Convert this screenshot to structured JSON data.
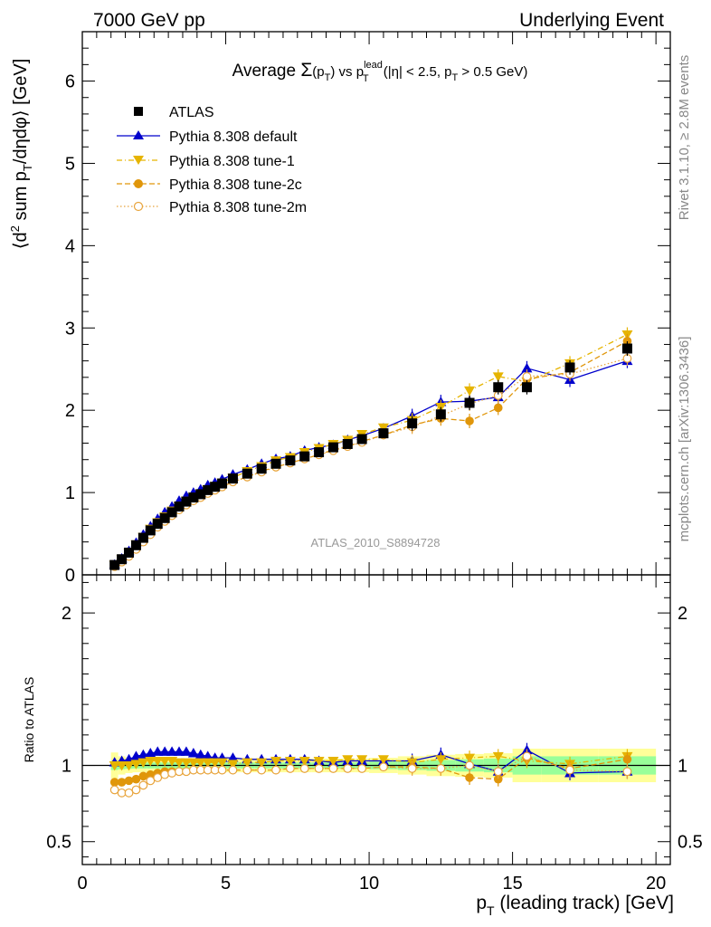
{
  "header": {
    "left": "7000 GeV pp",
    "right": "Underlying Event"
  },
  "side_labels": {
    "rivet": "Rivet 3.1.10, ≥ 2.8M events",
    "mcplots": "mcplots.cern.ch [arXiv:1306.3436]"
  },
  "watermark": "ATLAS_2010_S8894728",
  "colors": {
    "atlas": "#000000",
    "default": "#0000cc",
    "tune1": "#e6b400",
    "tune2c": "#e0960a",
    "tune2m": "#e8a43c",
    "band_inner": "#99ff99",
    "band_outer": "#ffff99"
  },
  "chart_data": [
    {
      "type": "scatter",
      "title": {
        "prefix": "Average ",
        "sigma": "Σ",
        "arg": "(p",
        "arg_sub": "T",
        "arg_close": ")",
        "vs": " vs p",
        "vs_sup": "lead",
        "vs_sub": "T",
        "cuts_1": " (|η| < 2.5, p",
        "cuts_sub": "T",
        "cuts_2": " > 0.5 GeV)"
      },
      "ylabel": {
        "a": "⟨d",
        "sup": "2",
        "b": " sum p",
        "sub": "T",
        "c": "/dηdφ⟩ [GeV]"
      },
      "xlim": [
        0,
        20.5
      ],
      "ylim": [
        0,
        6.6
      ],
      "yticks": [
        0,
        1,
        2,
        3,
        4,
        5,
        6
      ],
      "x": [
        1.125,
        1.375,
        1.625,
        1.875,
        2.125,
        2.375,
        2.625,
        2.875,
        3.125,
        3.375,
        3.625,
        3.875,
        4.125,
        4.375,
        4.625,
        4.875,
        5.25,
        5.75,
        6.25,
        6.75,
        7.25,
        7.75,
        8.25,
        8.75,
        9.25,
        9.75,
        10.5,
        11.5,
        12.5,
        13.5,
        14.5,
        15.5,
        17.0,
        19.0
      ],
      "series": [
        {
          "name": "ATLAS",
          "key": "atlas",
          "marker": "square",
          "line": "none",
          "values": [
            0.12,
            0.19,
            0.27,
            0.36,
            0.45,
            0.54,
            0.62,
            0.69,
            0.76,
            0.83,
            0.89,
            0.94,
            0.98,
            1.03,
            1.07,
            1.11,
            1.17,
            1.23,
            1.29,
            1.35,
            1.39,
            1.44,
            1.49,
            1.55,
            1.59,
            1.65,
            1.72,
            1.84,
            1.95,
            2.09,
            2.28,
            2.28,
            2.52,
            2.75
          ]
        },
        {
          "name": "Pythia 8.308 default",
          "key": "default",
          "marker": "triangle-up",
          "line": "solid",
          "values": [
            0.125,
            0.2,
            0.29,
            0.39,
            0.49,
            0.59,
            0.68,
            0.76,
            0.83,
            0.9,
            0.96,
            1.0,
            1.04,
            1.09,
            1.12,
            1.16,
            1.22,
            1.28,
            1.35,
            1.41,
            1.44,
            1.51,
            1.55,
            1.58,
            1.64,
            1.69,
            1.78,
            1.93,
            2.1,
            2.11,
            2.16,
            2.51,
            2.37,
            2.6
          ]
        },
        {
          "name": "Pythia 8.308 tune-1",
          "key": "tune1",
          "marker": "triangle-down",
          "line": "dashdot",
          "values": [
            0.12,
            0.19,
            0.27,
            0.37,
            0.46,
            0.56,
            0.64,
            0.71,
            0.78,
            0.84,
            0.9,
            0.95,
            0.99,
            1.04,
            1.08,
            1.12,
            1.18,
            1.26,
            1.32,
            1.39,
            1.43,
            1.49,
            1.54,
            1.59,
            1.64,
            1.71,
            1.79,
            1.88,
            2.04,
            2.24,
            2.41,
            2.35,
            2.57,
            2.92
          ]
        },
        {
          "name": "Pythia 8.308 tune-2c",
          "key": "tune2c",
          "marker": "circle",
          "line": "dashed",
          "values": [
            0.107,
            0.17,
            0.245,
            0.33,
            0.42,
            0.51,
            0.59,
            0.66,
            0.73,
            0.8,
            0.85,
            0.91,
            0.95,
            1.0,
            1.03,
            1.07,
            1.13,
            1.19,
            1.26,
            1.31,
            1.36,
            1.41,
            1.46,
            1.52,
            1.56,
            1.62,
            1.7,
            1.82,
            1.9,
            1.87,
            2.03,
            2.38,
            2.46,
            2.84
          ]
        },
        {
          "name": "Pythia 8.308 tune-2m",
          "key": "tune2m",
          "marker": "circle-open",
          "line": "dotted",
          "values": [
            0.1,
            0.157,
            0.225,
            0.31,
            0.4,
            0.49,
            0.58,
            0.65,
            0.72,
            0.79,
            0.85,
            0.9,
            0.94,
            0.99,
            1.03,
            1.07,
            1.13,
            1.19,
            1.25,
            1.31,
            1.36,
            1.41,
            1.46,
            1.51,
            1.56,
            1.61,
            1.7,
            1.8,
            1.93,
            2.08,
            2.18,
            2.41,
            2.44,
            2.63
          ]
        }
      ],
      "legend_position": "top-left"
    },
    {
      "type": "scatter",
      "ylabel": "Ratio to ATLAS",
      "xlabel": {
        "a": "p",
        "sub": "T",
        "b": " (leading track) [GeV]"
      },
      "xlim": [
        0,
        20.5
      ],
      "ylim": [
        0.35,
        2.25
      ],
      "yticks": [
        0.5,
        1,
        2
      ],
      "xticks": [
        0,
        5,
        10,
        15,
        20
      ],
      "x": [
        1.125,
        1.375,
        1.625,
        1.875,
        2.125,
        2.375,
        2.625,
        2.875,
        3.125,
        3.375,
        3.625,
        3.875,
        4.125,
        4.375,
        4.625,
        4.875,
        5.25,
        5.75,
        6.25,
        6.75,
        7.25,
        7.75,
        8.25,
        8.75,
        9.25,
        9.75,
        10.5,
        11.5,
        12.5,
        13.5,
        14.5,
        15.5,
        17.0,
        19.0
      ],
      "band_edges": [
        1.0,
        1.25,
        1.5,
        1.75,
        2.0,
        2.25,
        2.5,
        2.75,
        3.0,
        3.25,
        3.5,
        3.75,
        4.0,
        4.25,
        4.5,
        4.75,
        5.0,
        5.5,
        6.0,
        6.5,
        7.0,
        7.5,
        8.0,
        8.5,
        9.0,
        9.5,
        10.0,
        11.0,
        12.0,
        13.0,
        14.0,
        15.0,
        16.0,
        18.0,
        20.0
      ],
      "band_inner": [
        0.03,
        0.025,
        0.022,
        0.02,
        0.02,
        0.02,
        0.02,
        0.02,
        0.02,
        0.02,
        0.02,
        0.02,
        0.02,
        0.02,
        0.02,
        0.02,
        0.02,
        0.02,
        0.02,
        0.02,
        0.02,
        0.02,
        0.02,
        0.02,
        0.02,
        0.02,
        0.025,
        0.03,
        0.035,
        0.04,
        0.045,
        0.06,
        0.06,
        0.06
      ],
      "band_outer": [
        0.085,
        0.06,
        0.05,
        0.045,
        0.045,
        0.045,
        0.045,
        0.045,
        0.045,
        0.045,
        0.045,
        0.045,
        0.045,
        0.045,
        0.045,
        0.045,
        0.045,
        0.045,
        0.045,
        0.045,
        0.045,
        0.045,
        0.045,
        0.045,
        0.045,
        0.045,
        0.05,
        0.06,
        0.07,
        0.075,
        0.08,
        0.11,
        0.11,
        0.11
      ],
      "series": [
        {
          "name": "Pythia 8.308 default",
          "key": "default",
          "marker": "triangle-up",
          "line": "solid",
          "values": [
            1.02,
            1.03,
            1.04,
            1.06,
            1.07,
            1.08,
            1.09,
            1.09,
            1.09,
            1.09,
            1.09,
            1.08,
            1.07,
            1.06,
            1.05,
            1.05,
            1.05,
            1.04,
            1.04,
            1.04,
            1.04,
            1.04,
            1.03,
            1.02,
            1.03,
            1.03,
            1.03,
            1.03,
            1.07,
            1.01,
            0.96,
            1.1,
            0.95,
            0.96
          ]
        },
        {
          "name": "Pythia 8.308 tune-1",
          "key": "tune1",
          "marker": "triangle-down",
          "line": "dashdot",
          "values": [
            1.0,
            1.0,
            1.0,
            1.01,
            1.02,
            1.03,
            1.03,
            1.03,
            1.03,
            1.02,
            1.02,
            1.02,
            1.02,
            1.02,
            1.02,
            1.02,
            1.01,
            1.02,
            1.02,
            1.03,
            1.03,
            1.03,
            1.03,
            1.03,
            1.04,
            1.04,
            1.04,
            1.02,
            1.04,
            1.05,
            1.06,
            1.03,
            1.01,
            1.06
          ]
        },
        {
          "name": "Pythia 8.308 tune-2c",
          "key": "tune2c",
          "marker": "circle",
          "line": "dashed",
          "values": [
            0.89,
            0.89,
            0.9,
            0.91,
            0.93,
            0.94,
            0.95,
            0.96,
            0.96,
            0.96,
            0.96,
            0.97,
            0.97,
            0.97,
            0.97,
            0.97,
            0.97,
            0.97,
            0.97,
            0.97,
            0.98,
            0.98,
            0.98,
            0.98,
            0.98,
            0.98,
            0.99,
            0.99,
            0.98,
            0.92,
            0.91,
            1.05,
            0.98,
            1.04
          ]
        },
        {
          "name": "Pythia 8.308 tune-2m",
          "key": "tune2m",
          "marker": "circle-open",
          "line": "dotted",
          "values": [
            0.84,
            0.82,
            0.82,
            0.84,
            0.87,
            0.9,
            0.92,
            0.94,
            0.95,
            0.96,
            0.96,
            0.97,
            0.97,
            0.97,
            0.97,
            0.97,
            0.97,
            0.97,
            0.97,
            0.97,
            0.98,
            0.98,
            0.98,
            0.98,
            0.98,
            0.98,
            0.99,
            0.98,
            0.98,
            1.0,
            0.96,
            1.06,
            0.97,
            0.96
          ]
        }
      ]
    }
  ]
}
